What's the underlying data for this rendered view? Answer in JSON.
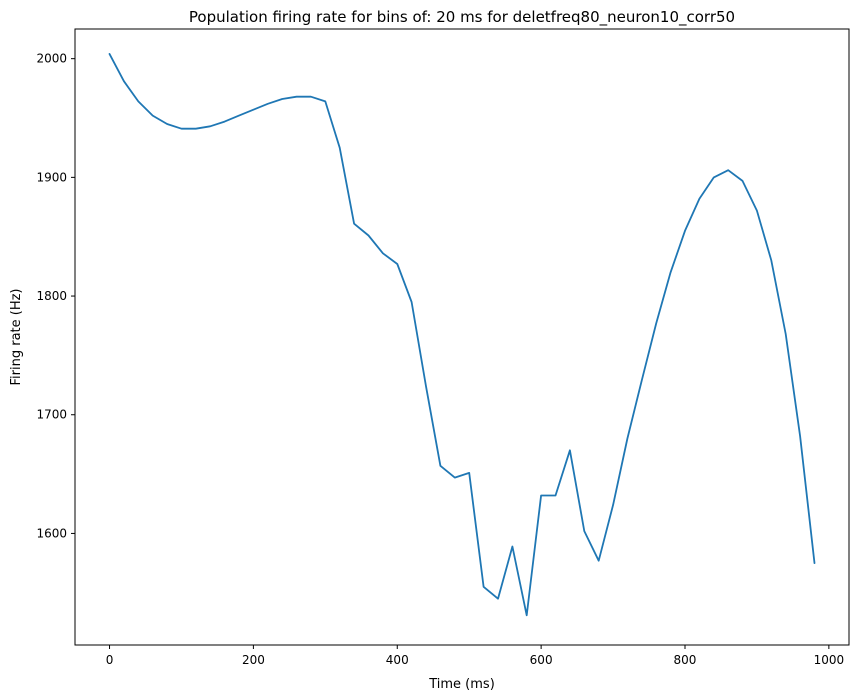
{
  "chart_data": {
    "type": "line",
    "title": "Population firing rate for bins of: 20 ms for deletfreq80_neuron10_corr50",
    "xlabel": "Time (ms)",
    "ylabel": "Firing rate (Hz)",
    "xlim": [
      -48,
      1028
    ],
    "ylim": [
      1506,
      2025
    ],
    "xticks": [
      0,
      200,
      400,
      600,
      800,
      1000
    ],
    "yticks": [
      1600,
      1700,
      1800,
      1900,
      2000
    ],
    "xtick_labels": [
      "0",
      "200",
      "400",
      "600",
      "800",
      "1000"
    ],
    "ytick_labels": [
      "1600",
      "1700",
      "1800",
      "1900",
      "2000"
    ],
    "grid": false,
    "series": [
      {
        "color": "#1f77b4",
        "x": [
          0,
          20,
          40,
          60,
          80,
          100,
          120,
          140,
          160,
          180,
          200,
          220,
          240,
          260,
          280,
          300,
          320,
          340,
          360,
          380,
          400,
          420,
          440,
          460,
          480,
          500,
          520,
          540,
          560,
          580,
          600,
          620,
          640,
          660,
          680,
          700,
          720,
          740,
          760,
          780,
          800,
          820,
          840,
          860,
          880,
          900,
          920,
          940,
          960,
          980
        ],
        "values": [
          2004,
          1981,
          1964,
          1952,
          1945,
          1941,
          1941,
          1943,
          1947,
          1952,
          1957,
          1962,
          1966,
          1968,
          1968,
          1964,
          1925,
          1861,
          1851,
          1836,
          1827,
          1795,
          1724,
          1657,
          1647,
          1651,
          1555,
          1545,
          1589,
          1531,
          1632,
          1632,
          1670,
          1602,
          1577,
          1624,
          1680,
          1729,
          1777,
          1820,
          1855,
          1882,
          1900,
          1906,
          1897,
          1872,
          1830,
          1768,
          1682,
          1575
        ]
      }
    ]
  }
}
